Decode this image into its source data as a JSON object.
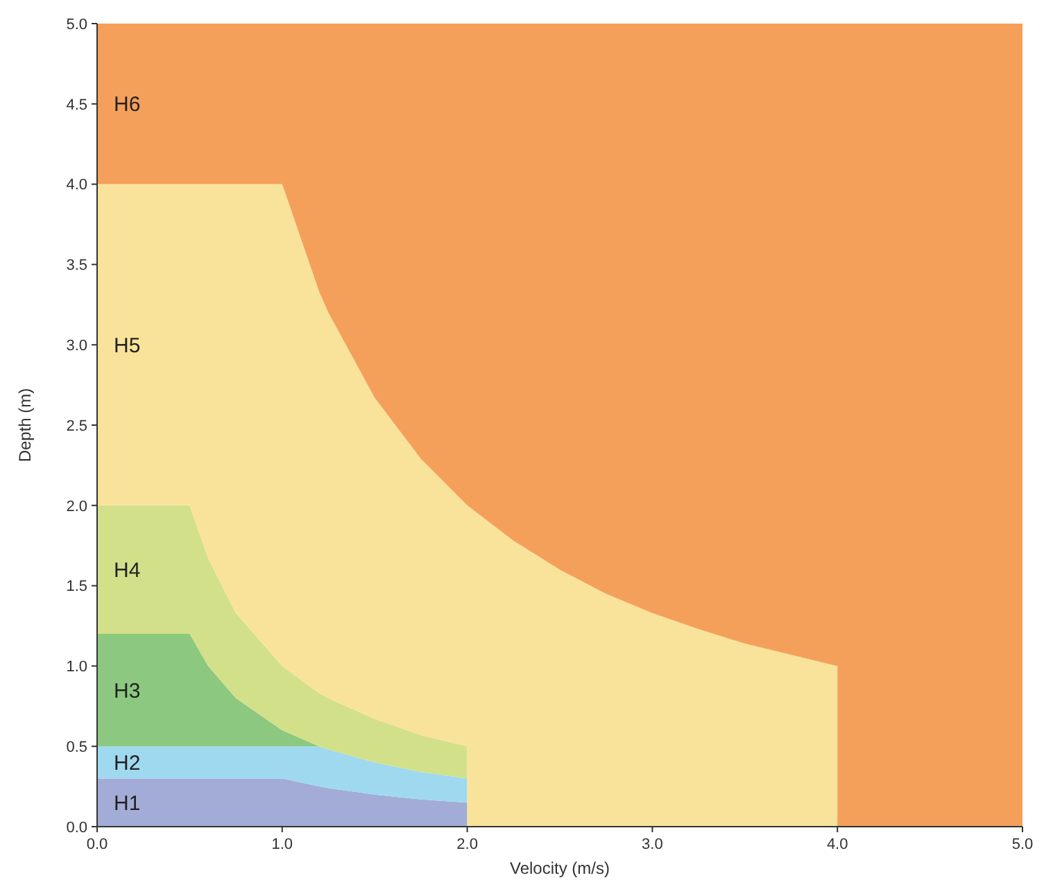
{
  "chart_data": {
    "type": "area",
    "stacked": true,
    "xlabel": "Velocity (m/s)",
    "ylabel": "Depth (m)",
    "xlim": [
      0,
      5
    ],
    "ylim": [
      0,
      5
    ],
    "xticks": [
      {
        "value": 0,
        "label": "0.0"
      },
      {
        "value": 1,
        "label": "1.0"
      },
      {
        "value": 2,
        "label": "2.0"
      },
      {
        "value": 3,
        "label": "3.0"
      },
      {
        "value": 4,
        "label": "4.0"
      },
      {
        "value": 5,
        "label": "5.0"
      }
    ],
    "yticks": [
      {
        "value": 0,
        "label": "0.0"
      },
      0.5,
      {
        "value": 1,
        "label": "1.0"
      },
      1.5,
      {
        "value": 2,
        "label": "2.0"
      },
      2.5,
      {
        "value": 3,
        "label": "3.0"
      },
      3.5,
      {
        "value": 4,
        "label": "4.0"
      },
      4.5,
      {
        "value": 5,
        "label": "5.0"
      }
    ],
    "grid": false,
    "legend": false,
    "x": [
      0,
      0.5,
      0.6,
      0.75,
      1,
      1.2,
      1.25,
      1.5,
      1.75,
      2,
      2,
      2.25,
      2.5,
      2.75,
      3,
      3.25,
      3.5,
      3.75,
      4,
      4,
      5
    ],
    "series": [
      {
        "name": "H1",
        "color": "#a3acd6",
        "values": [
          0.3,
          0.3,
          0.3,
          0.3,
          0.3,
          0.25,
          0.24,
          0.2,
          0.17,
          0.15,
          0,
          0,
          0,
          0,
          0,
          0,
          0,
          0,
          0,
          0,
          0
        ]
      },
      {
        "name": "H2",
        "color": "#9fd9ef",
        "values": [
          0.2,
          0.2,
          0.2,
          0.2,
          0.2,
          0.25,
          0.24,
          0.2,
          0.17,
          0.15,
          0,
          0,
          0,
          0,
          0,
          0,
          0,
          0,
          0,
          0,
          0
        ]
      },
      {
        "name": "H3",
        "color": "#8cc87f",
        "values": [
          0.7,
          0.7,
          0.5,
          0.3,
          0.1,
          0,
          0,
          0,
          0,
          0,
          0,
          0,
          0,
          0,
          0,
          0,
          0,
          0,
          0,
          0,
          0
        ]
      },
      {
        "name": "H4",
        "color": "#d2e08a",
        "values": [
          0.8,
          0.8,
          0.67,
          0.53,
          0.4,
          0.33,
          0.32,
          0.27,
          0.23,
          0.2,
          0,
          0,
          0,
          0,
          0,
          0,
          0,
          0,
          0,
          0,
          0
        ]
      },
      {
        "name": "H5",
        "color": "#f9e39a",
        "values": [
          2,
          2,
          2.33,
          2.67,
          3,
          2.5,
          2.4,
          2,
          1.72,
          1.5,
          2,
          1.78,
          1.6,
          1.45,
          1.33,
          1.23,
          1.14,
          1.07,
          1,
          0,
          0
        ]
      },
      {
        "name": "H6",
        "color": "#f5a05a",
        "values": [
          1,
          1,
          1,
          1,
          1,
          1.67,
          1.8,
          2.33,
          2.71,
          3,
          3,
          3.22,
          3.4,
          3.55,
          3.67,
          3.77,
          3.86,
          3.93,
          4,
          5,
          5
        ]
      }
    ]
  }
}
